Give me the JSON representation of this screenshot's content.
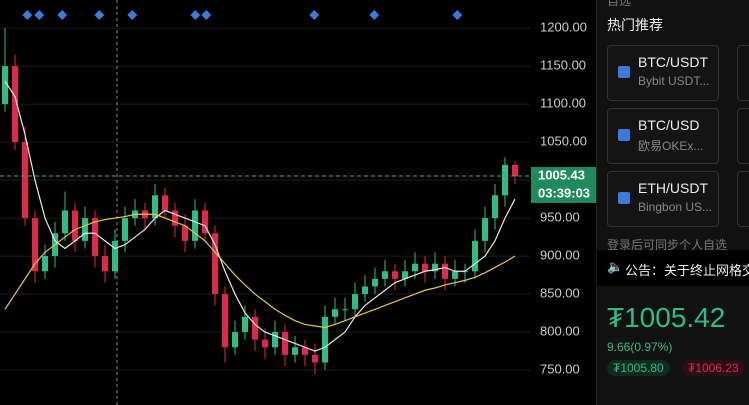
{
  "chart_data": {
    "type": "candlestick",
    "ylim": [
      704,
      1237
    ],
    "yticks": [
      {
        "value": 1200,
        "label": "1200.00"
      },
      {
        "value": 1150,
        "label": "1150.00"
      },
      {
        "value": 1100,
        "label": "1100.00"
      },
      {
        "value": 1050,
        "label": "1050.00"
      },
      {
        "value": 1000,
        "label": "1000.00"
      },
      {
        "value": 950,
        "label": "950.00"
      },
      {
        "value": 900,
        "label": "900.00"
      },
      {
        "value": 850,
        "label": "850.00"
      },
      {
        "value": 800,
        "label": "800.00"
      },
      {
        "value": 750,
        "label": "750.00"
      }
    ],
    "grid": true,
    "up_color": "#2ebd85",
    "down_color": "#e0294a",
    "open": [
      1100,
      1150,
      1050,
      950,
      880,
      900,
      930,
      960,
      920,
      950,
      900,
      880,
      920,
      950,
      960,
      950,
      980,
      960,
      940,
      920,
      960,
      930,
      850,
      780,
      800,
      820,
      790,
      780,
      800,
      770,
      780,
      770,
      760,
      820,
      830,
      830,
      850,
      860,
      870,
      880,
      870,
      880,
      890,
      880,
      890,
      870,
      880,
      880,
      920,
      950,
      980,
      1020
    ],
    "high": [
      1200,
      1165,
      1070,
      960,
      915,
      945,
      985,
      970,
      965,
      960,
      915,
      935,
      965,
      975,
      970,
      995,
      990,
      970,
      955,
      975,
      970,
      940,
      860,
      815,
      835,
      830,
      805,
      815,
      810,
      795,
      790,
      785,
      835,
      845,
      845,
      865,
      875,
      885,
      895,
      890,
      895,
      905,
      900,
      905,
      900,
      895,
      890,
      935,
      965,
      995,
      1030,
      1025
    ],
    "low": [
      1090,
      1040,
      940,
      865,
      870,
      885,
      920,
      905,
      910,
      885,
      865,
      870,
      905,
      940,
      935,
      940,
      950,
      925,
      905,
      910,
      920,
      835,
      760,
      770,
      790,
      775,
      765,
      770,
      755,
      760,
      755,
      745,
      750,
      810,
      815,
      820,
      840,
      850,
      860,
      855,
      860,
      870,
      865,
      870,
      855,
      860,
      865,
      870,
      905,
      935,
      965,
      995
    ],
    "close": [
      1150,
      1050,
      950,
      880,
      900,
      930,
      960,
      920,
      950,
      900,
      880,
      920,
      950,
      960,
      950,
      980,
      960,
      940,
      920,
      960,
      930,
      850,
      780,
      800,
      820,
      790,
      780,
      800,
      770,
      780,
      770,
      760,
      820,
      830,
      830,
      850,
      860,
      870,
      880,
      870,
      880,
      890,
      880,
      890,
      870,
      880,
      880,
      920,
      950,
      980,
      1020,
      1005
    ],
    "series": [
      {
        "color": "#e8e8e8",
        "values": [
          1130,
          1110,
          1060,
          1000,
          950,
          920,
          910,
          920,
          930,
          930,
          920,
          910,
          915,
          925,
          935,
          950,
          960,
          955,
          950,
          945,
          940,
          915,
          880,
          850,
          825,
          810,
          800,
          795,
          790,
          785,
          780,
          775,
          780,
          790,
          800,
          820,
          835,
          845,
          855,
          865,
          870,
          875,
          880,
          882,
          885,
          880,
          880,
          890,
          900,
          920,
          950,
          975
        ]
      },
      {
        "color": "#e3c74a",
        "values": [
          830,
          850,
          870,
          890,
          905,
          915,
          925,
          935,
          940,
          945,
          948,
          950,
          952,
          955,
          955,
          955,
          950,
          945,
          940,
          930,
          920,
          905,
          890,
          875,
          862,
          850,
          840,
          830,
          822,
          815,
          810,
          808,
          806,
          810,
          815,
          820,
          825,
          830,
          835,
          840,
          845,
          850,
          855,
          858,
          862,
          865,
          868,
          872,
          878,
          885,
          892,
          900
        ]
      }
    ],
    "last_price": {
      "value": 1005.43,
      "label": "1005.43"
    },
    "countdown": "03:39:03"
  },
  "panel": {
    "section": "自选",
    "hot": "热门推荐",
    "cards": [
      {
        "pair": "BTC/USDT",
        "exchange": "Bybit USDT..."
      },
      {
        "pair": "BTC/USD",
        "exchange": "欧易OKEx..."
      },
      {
        "pair": "ETH/USDT",
        "exchange": "Bingbon US..."
      }
    ],
    "login_hint": "登录后可同步个人自选",
    "notice": "公告：关于终止网格交",
    "price": "₮1005.42",
    "change": "9.66(0.97%)",
    "bid": "₮1005.80",
    "ask": "₮1006.23"
  }
}
